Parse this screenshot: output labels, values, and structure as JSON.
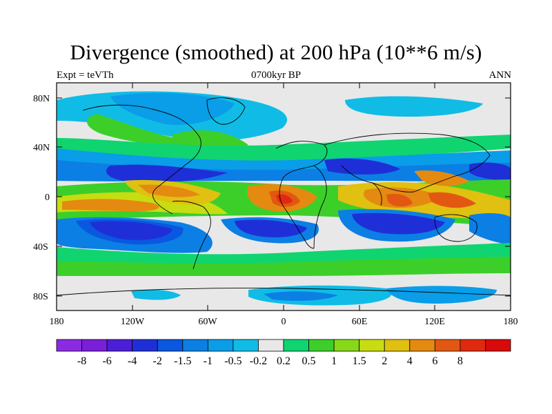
{
  "title": "Divergence (smoothed) at 200 hPa (10**6 m/s)",
  "left_subtitle": "Expt = teVTh",
  "center_subtitle": "0700kyr BP",
  "right_subtitle": "ANN",
  "axes": {
    "lat_ticks": [
      "80N",
      "40N",
      "0",
      "40S",
      "80S"
    ],
    "lon_ticks": [
      "180",
      "120W",
      "60W",
      "0",
      "60E",
      "120E",
      "180"
    ]
  },
  "colorbar": {
    "colors": [
      "#8a2be2",
      "#7a1fd8",
      "#4d1ed8",
      "#1f2fd8",
      "#0a57e0",
      "#0b7fe4",
      "#0a9de8",
      "#10bce6",
      "#e8e8e8",
      "#10d470",
      "#3ccf2a",
      "#88d81a",
      "#c8dc12",
      "#e0c010",
      "#e48a10",
      "#e25812",
      "#e02a10",
      "#d80a0a"
    ],
    "labels": [
      "-8",
      "-6",
      "-4",
      "-2",
      "-1.5",
      "-1",
      "-0.5",
      "-0.2",
      "0.2",
      "0.5",
      "1",
      "1.5",
      "2",
      "4",
      "6",
      "8"
    ]
  }
}
